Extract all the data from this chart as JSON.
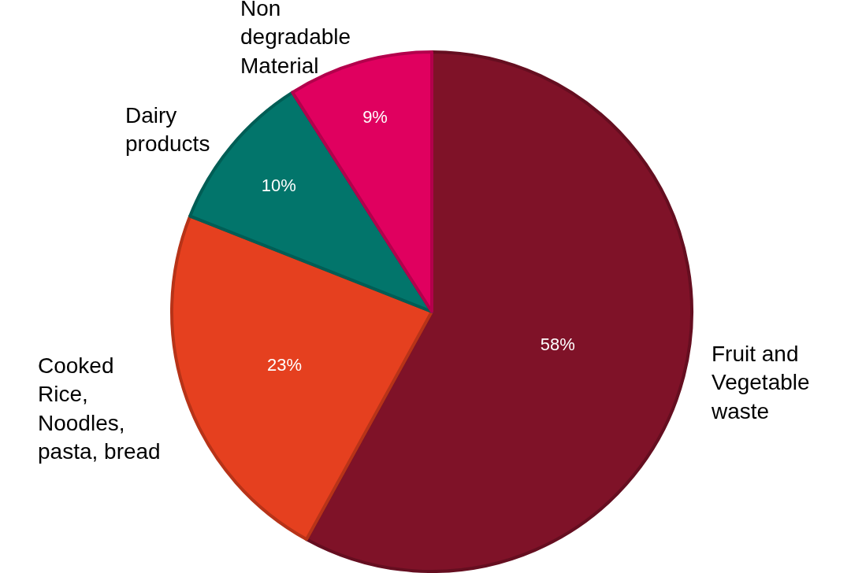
{
  "chart_data": {
    "type": "pie",
    "categories": [
      "Fruit and\nVegetable\nwaste",
      "Cooked\nRice,\nNoodles,\npasta, bread",
      "Dairy\nproducts",
      "Non\ndegradable\nMaterial"
    ],
    "values": [
      58,
      23,
      10,
      9
    ],
    "value_labels": [
      "58%",
      "23%",
      "10%",
      "9%"
    ],
    "colors": [
      "#7f1228",
      "#e5401f",
      "#02756b",
      "#e0005f"
    ],
    "legend": false
  }
}
